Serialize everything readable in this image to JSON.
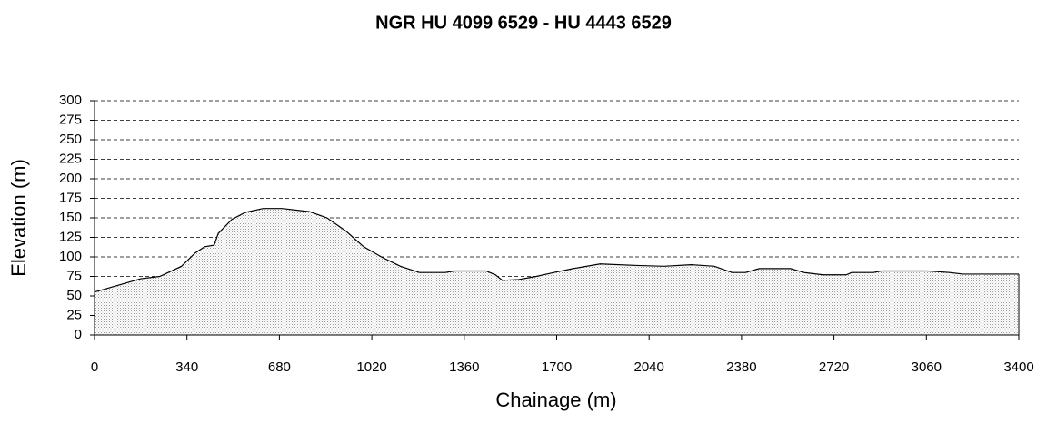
{
  "chart_data": {
    "type": "area",
    "title": "NGR HU 4099 6529 - HU 4443 6529",
    "x_label": "Chainage (m)",
    "y_label": "Elevation (m)",
    "x": [
      0,
      50,
      170,
      240,
      320,
      370,
      405,
      440,
      455,
      505,
      555,
      620,
      690,
      790,
      855,
      925,
      990,
      1055,
      1125,
      1195,
      1290,
      1325,
      1440,
      1475,
      1500,
      1560,
      1625,
      1690,
      1760,
      1860,
      1995,
      2095,
      2195,
      2280,
      2345,
      2395,
      2445,
      2560,
      2610,
      2680,
      2765,
      2785,
      2865,
      2895,
      3065,
      3145,
      3195,
      3400
    ],
    "values": [
      55,
      60,
      72,
      75,
      88,
      105,
      113,
      115,
      130,
      148,
      157,
      162,
      162,
      158,
      150,
      133,
      113,
      100,
      88,
      80,
      80,
      82,
      82,
      77,
      70,
      71,
      75,
      80,
      85,
      91,
      89,
      88,
      90,
      88,
      80,
      80,
      85,
      85,
      80,
      77,
      77,
      80,
      80,
      82,
      82,
      80,
      78,
      78
    ],
    "xlim": [
      0,
      3400
    ],
    "xticks": [
      0,
      340,
      680,
      1020,
      1360,
      1700,
      2040,
      2380,
      2720,
      3060,
      3400
    ],
    "ylim": [
      0,
      300
    ],
    "yticks": [
      0,
      25,
      50,
      75,
      100,
      125,
      150,
      175,
      200,
      225,
      250,
      275,
      300
    ],
    "grid": true
  }
}
